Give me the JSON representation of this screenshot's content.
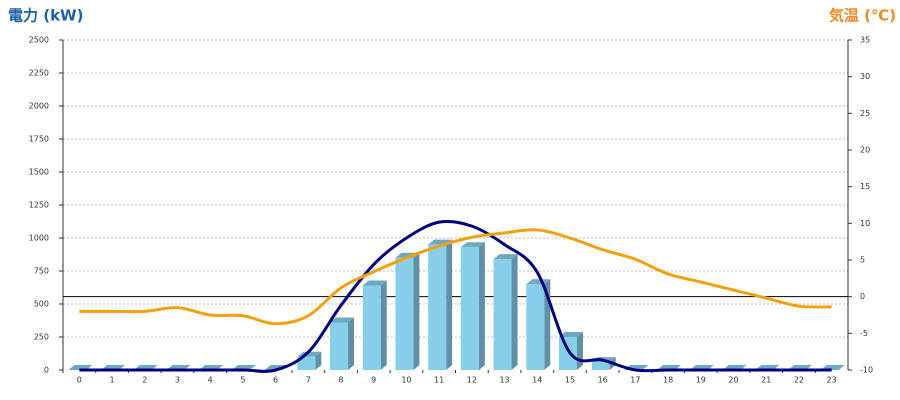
{
  "chart_data": {
    "type": "bar",
    "y_title": "電力 (kW)",
    "y2_title": "気温 (℃)",
    "categories": [
      "0",
      "1",
      "2",
      "3",
      "4",
      "5",
      "6",
      "7",
      "8",
      "9",
      "10",
      "11",
      "12",
      "13",
      "14",
      "15",
      "16",
      "17",
      "18",
      "19",
      "20",
      "21",
      "22",
      "23"
    ],
    "ylim": [
      0,
      2500
    ],
    "yticks": [
      0,
      250,
      500,
      750,
      1000,
      1250,
      1500,
      1750,
      2000,
      2250,
      2500
    ],
    "y2lim": [
      -10,
      35
    ],
    "y2ticks": [
      -10,
      -5,
      0,
      5,
      10,
      15,
      20,
      25,
      30,
      35
    ],
    "grid": true,
    "series": [
      {
        "type": "bar",
        "color": "#87ceeb",
        "values": [
          0,
          0,
          0,
          0,
          0,
          0,
          0,
          100,
          360,
          640,
          850,
          950,
          930,
          840,
          650,
          250,
          60,
          0,
          0,
          0,
          0,
          0,
          0,
          0
        ]
      },
      {
        "type": "line",
        "color": "#000080",
        "values": [
          0,
          0,
          0,
          0,
          0,
          0,
          0,
          136,
          490,
          800,
          1000,
          1120,
          1090,
          950,
          740,
          130,
          75,
          0,
          0,
          0,
          0,
          0,
          0,
          0
        ]
      },
      {
        "type": "line",
        "axis": "y2",
        "color": "#f5a010",
        "values": [
          -2,
          -2,
          -2,
          -1.5,
          -2.5,
          -2.6,
          -3.7,
          -2.6,
          1.2,
          3.4,
          5.3,
          6.9,
          8.1,
          8.7,
          9.1,
          8.0,
          6.4,
          5.1,
          3.1,
          2.0,
          0.9,
          -0.2,
          -1.3,
          -1.4
        ]
      }
    ]
  }
}
